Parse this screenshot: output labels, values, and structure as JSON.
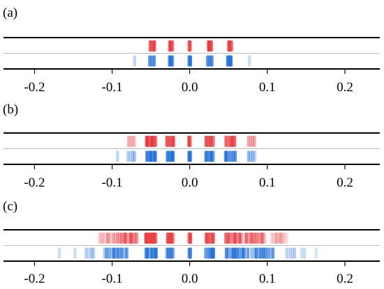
{
  "chart_data": [
    {
      "label": "(a)",
      "type": "strip",
      "xlim": [
        -0.24,
        0.245
      ],
      "x_ticks": [
        "-0.2",
        "-0.1",
        "0.0",
        "0.1",
        "0.2"
      ],
      "x_tick_values": [
        -0.2,
        -0.1,
        0.0,
        0.1,
        0.2
      ],
      "grid": "horizontal midline",
      "series": [
        {
          "color": "#e8363a",
          "row": "top",
          "clusters": [
            {
              "center": -0.048,
              "spread": 0.003,
              "count": 4,
              "alpha": 0.9
            },
            {
              "center": -0.024,
              "spread": 0.002,
              "count": 4,
              "alpha": 0.9
            },
            {
              "center": 0.0,
              "spread": 0.001,
              "count": 3,
              "alpha": 0.9
            },
            {
              "center": 0.026,
              "spread": 0.002,
              "count": 4,
              "alpha": 0.9
            },
            {
              "center": 0.052,
              "spread": 0.002,
              "count": 4,
              "alpha": 0.9
            }
          ]
        },
        {
          "color": "#1f6fd6",
          "row": "bottom",
          "clusters": [
            {
              "center": -0.071,
              "spread": 0.001,
              "count": 1,
              "alpha": 0.45
            },
            {
              "center": -0.049,
              "spread": 0.003,
              "count": 4,
              "alpha": 0.9
            },
            {
              "center": -0.024,
              "spread": 0.002,
              "count": 4,
              "alpha": 0.9
            },
            {
              "center": 0.0,
              "spread": 0.001,
              "count": 3,
              "alpha": 0.9
            },
            {
              "center": 0.026,
              "spread": 0.003,
              "count": 4,
              "alpha": 0.9
            },
            {
              "center": 0.051,
              "spread": 0.002,
              "count": 4,
              "alpha": 0.9
            },
            {
              "center": 0.077,
              "spread": 0.002,
              "count": 1,
              "alpha": 0.25
            }
          ]
        }
      ]
    },
    {
      "label": "(b)",
      "type": "strip",
      "xlim": [
        -0.24,
        0.245
      ],
      "x_ticks": [
        "-0.2",
        "-0.1",
        "0.0",
        "0.1",
        "0.2"
      ],
      "x_tick_values": [
        -0.2,
        -0.1,
        0.0,
        0.1,
        0.2
      ],
      "grid": "horizontal midline",
      "series": [
        {
          "color": "#e8363a",
          "row": "top",
          "clusters": [
            {
              "center": -0.075,
              "spread": 0.004,
              "count": 4,
              "alpha": 0.45
            },
            {
              "center": -0.05,
              "spread": 0.006,
              "count": 7,
              "alpha": 0.9
            },
            {
              "center": -0.025,
              "spread": 0.004,
              "count": 5,
              "alpha": 0.9
            },
            {
              "center": 0.0,
              "spread": 0.001,
              "count": 3,
              "alpha": 0.9
            },
            {
              "center": 0.026,
              "spread": 0.005,
              "count": 6,
              "alpha": 0.9
            },
            {
              "center": 0.052,
              "spread": 0.006,
              "count": 7,
              "alpha": 0.9
            },
            {
              "center": 0.08,
              "spread": 0.004,
              "count": 4,
              "alpha": 0.45
            }
          ]
        },
        {
          "color": "#1f6fd6",
          "row": "bottom",
          "clusters": [
            {
              "center": -0.093,
              "spread": 0.001,
              "count": 1,
              "alpha": 0.45
            },
            {
              "center": -0.075,
              "spread": 0.004,
              "count": 4,
              "alpha": 0.5
            },
            {
              "center": -0.05,
              "spread": 0.006,
              "count": 7,
              "alpha": 0.9
            },
            {
              "center": -0.025,
              "spread": 0.004,
              "count": 5,
              "alpha": 0.9
            },
            {
              "center": 0.0,
              "spread": 0.001,
              "count": 3,
              "alpha": 0.9
            },
            {
              "center": 0.026,
              "spread": 0.005,
              "count": 6,
              "alpha": 0.9
            },
            {
              "center": 0.052,
              "spread": 0.006,
              "count": 7,
              "alpha": 0.9
            },
            {
              "center": 0.08,
              "spread": 0.004,
              "count": 4,
              "alpha": 0.5
            }
          ]
        }
      ]
    },
    {
      "label": "(c)",
      "type": "strip",
      "xlim": [
        -0.24,
        0.245
      ],
      "x_ticks": [
        "-0.2",
        "-0.1",
        "0.0",
        "0.1",
        "0.2"
      ],
      "x_tick_values": [
        -0.2,
        -0.1,
        0.0,
        0.1,
        0.2
      ],
      "grid": "horizontal midline",
      "series": [
        {
          "color": "#e8363a",
          "row": "top",
          "clusters": [
            {
              "center": -0.105,
              "spread": 0.01,
              "count": 12,
              "alpha": 0.3
            },
            {
              "center": -0.08,
              "spread": 0.012,
              "count": 14,
              "alpha": 0.6
            },
            {
              "center": -0.05,
              "spread": 0.007,
              "count": 9,
              "alpha": 0.9
            },
            {
              "center": -0.025,
              "spread": 0.004,
              "count": 5,
              "alpha": 0.9
            },
            {
              "center": 0.0,
              "spread": 0.001,
              "count": 3,
              "alpha": 0.9
            },
            {
              "center": 0.026,
              "spread": 0.005,
              "count": 6,
              "alpha": 0.9
            },
            {
              "center": 0.056,
              "spread": 0.01,
              "count": 12,
              "alpha": 0.7
            },
            {
              "center": 0.085,
              "spread": 0.012,
              "count": 14,
              "alpha": 0.6
            },
            {
              "center": 0.115,
              "spread": 0.009,
              "count": 10,
              "alpha": 0.3
            }
          ]
        },
        {
          "color": "#1f6fd6",
          "row": "bottom",
          "clusters": [
            {
              "center": -0.168,
              "spread": 0.001,
              "count": 1,
              "alpha": 0.3
            },
            {
              "center": -0.148,
              "spread": 0.001,
              "count": 1,
              "alpha": 0.3
            },
            {
              "center": -0.128,
              "spread": 0.005,
              "count": 5,
              "alpha": 0.35
            },
            {
              "center": -0.095,
              "spread": 0.014,
              "count": 16,
              "alpha": 0.6
            },
            {
              "center": -0.05,
              "spread": 0.007,
              "count": 9,
              "alpha": 0.9
            },
            {
              "center": -0.025,
              "spread": 0.004,
              "count": 5,
              "alpha": 0.9
            },
            {
              "center": 0.0,
              "spread": 0.001,
              "count": 3,
              "alpha": 0.9
            },
            {
              "center": 0.026,
              "spread": 0.005,
              "count": 6,
              "alpha": 0.9
            },
            {
              "center": 0.06,
              "spread": 0.013,
              "count": 14,
              "alpha": 0.75
            },
            {
              "center": 0.095,
              "spread": 0.014,
              "count": 16,
              "alpha": 0.6
            },
            {
              "center": 0.13,
              "spread": 0.005,
              "count": 5,
              "alpha": 0.35
            },
            {
              "center": 0.146,
              "spread": 0.002,
              "count": 2,
              "alpha": 0.3
            },
            {
              "center": 0.163,
              "spread": 0.001,
              "count": 1,
              "alpha": 0.3
            }
          ]
        }
      ]
    }
  ]
}
